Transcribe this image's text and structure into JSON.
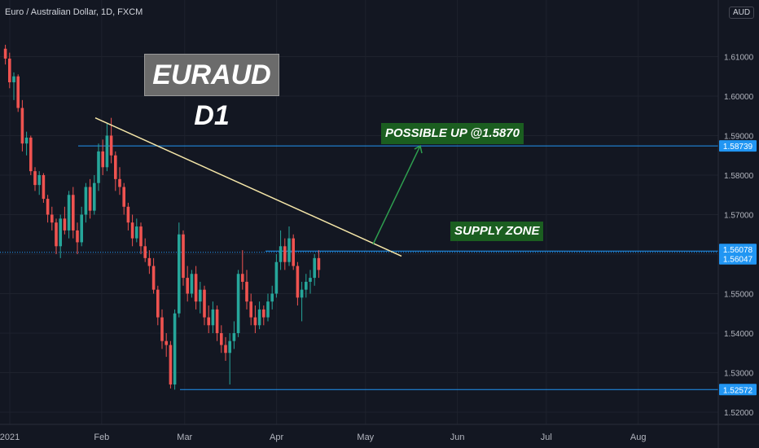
{
  "header": {
    "symbol_title": "Euro / Australian Dollar, 1D, FXCM",
    "currency": "AUD"
  },
  "annotations": {
    "title_badge": "EURAUD D1",
    "up_label": "POSSIBLE UP @1.5870",
    "supply_label": "SUPPLY ZONE"
  },
  "colors": {
    "background": "#131722",
    "up_candle": "#26a69a",
    "down_candle": "#ef5350",
    "level_line": "#2196f3",
    "trendline": "#f5e6a8",
    "arrow": "#2e9e4f",
    "badge_green": "#1b5e20",
    "badge_gray": "#6b6b6b"
  },
  "chart_data": {
    "type": "candlestick",
    "symbol": "EURAUD",
    "timeframe": "1D",
    "ylim": [
      1.5175,
      1.6175
    ],
    "y_ticks": [
      "1.52000",
      "1.53000",
      "1.54000",
      "1.55000",
      "1.56000",
      "1.57000",
      "1.58000",
      "1.59000",
      "1.60000",
      "1.61000"
    ],
    "x_ticks": [
      "2021",
      "Feb",
      "Mar",
      "Apr",
      "May",
      "Jun",
      "Jul",
      "Aug"
    ],
    "price_levels": [
      "1.58739",
      "1.56078",
      "1.56047",
      "1.52572"
    ],
    "trendline": {
      "start": [
        "2021-01-29",
        1.5945
      ],
      "end": [
        "2021-04-27",
        1.5595
      ]
    },
    "arrow_target": 1.587,
    "candles": [
      [
        1.612,
        1.613,
        1.608,
        1.6095
      ],
      [
        1.6095,
        1.611,
        1.602,
        1.6035
      ],
      [
        1.6035,
        1.606,
        1.599,
        1.605
      ],
      [
        1.605,
        1.6055,
        1.596,
        1.597
      ],
      [
        1.597,
        1.599,
        1.586,
        1.588
      ],
      [
        1.588,
        1.591,
        1.585,
        1.5895
      ],
      [
        1.5895,
        1.59,
        1.58,
        1.581
      ],
      [
        1.581,
        1.582,
        1.576,
        1.5775
      ],
      [
        1.5775,
        1.581,
        1.575,
        1.58
      ],
      [
        1.58,
        1.5805,
        1.573,
        1.574
      ],
      [
        1.574,
        1.575,
        1.568,
        1.57
      ],
      [
        1.57,
        1.572,
        1.566,
        1.568
      ],
      [
        1.568,
        1.569,
        1.56,
        1.562
      ],
      [
        1.562,
        1.57,
        1.559,
        1.569
      ],
      [
        1.569,
        1.572,
        1.565,
        1.566
      ],
      [
        1.566,
        1.576,
        1.564,
        1.575
      ],
      [
        1.575,
        1.577,
        1.564,
        1.566
      ],
      [
        1.566,
        1.568,
        1.56,
        1.563
      ],
      [
        1.563,
        1.572,
        1.562,
        1.57
      ],
      [
        1.57,
        1.578,
        1.568,
        1.577
      ],
      [
        1.577,
        1.579,
        1.569,
        1.571
      ],
      [
        1.571,
        1.58,
        1.57,
        1.578
      ],
      [
        1.578,
        1.588,
        1.576,
        1.586
      ],
      [
        1.586,
        1.589,
        1.58,
        1.582
      ],
      [
        1.582,
        1.593,
        1.581,
        1.59
      ],
      [
        1.59,
        1.5945,
        1.583,
        1.585
      ],
      [
        1.585,
        1.586,
        1.576,
        1.579
      ],
      [
        1.579,
        1.582,
        1.575,
        1.577
      ],
      [
        1.577,
        1.578,
        1.57,
        1.572
      ],
      [
        1.572,
        1.573,
        1.566,
        1.568
      ],
      [
        1.568,
        1.57,
        1.562,
        1.564
      ],
      [
        1.564,
        1.569,
        1.563,
        1.567
      ],
      [
        1.567,
        1.568,
        1.56,
        1.562
      ],
      [
        1.562,
        1.564,
        1.558,
        1.559
      ],
      [
        1.559,
        1.561,
        1.555,
        1.557
      ],
      [
        1.557,
        1.559,
        1.55,
        1.551
      ],
      [
        1.551,
        1.552,
        1.542,
        1.544
      ],
      [
        1.544,
        1.546,
        1.536,
        1.538
      ],
      [
        1.538,
        1.54,
        1.534,
        1.537
      ],
      [
        1.537,
        1.538,
        1.526,
        1.527
      ],
      [
        1.527,
        1.546,
        1.5257,
        1.545
      ],
      [
        1.545,
        1.568,
        1.544,
        1.565
      ],
      [
        1.565,
        1.566,
        1.552,
        1.554
      ],
      [
        1.554,
        1.557,
        1.548,
        1.55
      ],
      [
        1.55,
        1.556,
        1.549,
        1.555
      ],
      [
        1.555,
        1.557,
        1.546,
        1.548
      ],
      [
        1.548,
        1.553,
        1.545,
        1.551
      ],
      [
        1.551,
        1.552,
        1.542,
        1.544
      ],
      [
        1.544,
        1.547,
        1.54,
        1.542
      ],
      [
        1.542,
        1.548,
        1.54,
        1.546
      ],
      [
        1.546,
        1.547,
        1.538,
        1.54
      ],
      [
        1.54,
        1.542,
        1.535,
        1.537
      ],
      [
        1.537,
        1.539,
        1.533,
        1.535
      ],
      [
        1.535,
        1.54,
        1.527,
        1.538
      ],
      [
        1.538,
        1.543,
        1.536,
        1.54
      ],
      [
        1.54,
        1.556,
        1.539,
        1.555
      ],
      [
        1.555,
        1.561,
        1.551,
        1.553
      ],
      [
        1.553,
        1.556,
        1.546,
        1.548
      ],
      [
        1.548,
        1.55,
        1.542,
        1.544
      ],
      [
        1.544,
        1.547,
        1.54,
        1.542
      ],
      [
        1.542,
        1.548,
        1.541,
        1.546
      ],
      [
        1.546,
        1.547,
        1.542,
        1.544
      ],
      [
        1.544,
        1.55,
        1.543,
        1.548
      ],
      [
        1.548,
        1.552,
        1.546,
        1.55
      ],
      [
        1.55,
        1.56,
        1.549,
        1.558
      ],
      [
        1.558,
        1.566,
        1.556,
        1.562
      ],
      [
        1.562,
        1.564,
        1.556,
        1.558
      ],
      [
        1.558,
        1.567,
        1.557,
        1.564
      ],
      [
        1.564,
        1.565,
        1.556,
        1.557
      ],
      [
        1.557,
        1.558,
        1.547,
        1.549
      ],
      [
        1.549,
        1.553,
        1.543,
        1.551
      ],
      [
        1.551,
        1.555,
        1.549,
        1.553
      ],
      [
        1.553,
        1.556,
        1.55,
        1.554
      ],
      [
        1.554,
        1.56,
        1.552,
        1.559
      ],
      [
        1.559,
        1.561,
        1.554,
        1.556
      ]
    ]
  }
}
